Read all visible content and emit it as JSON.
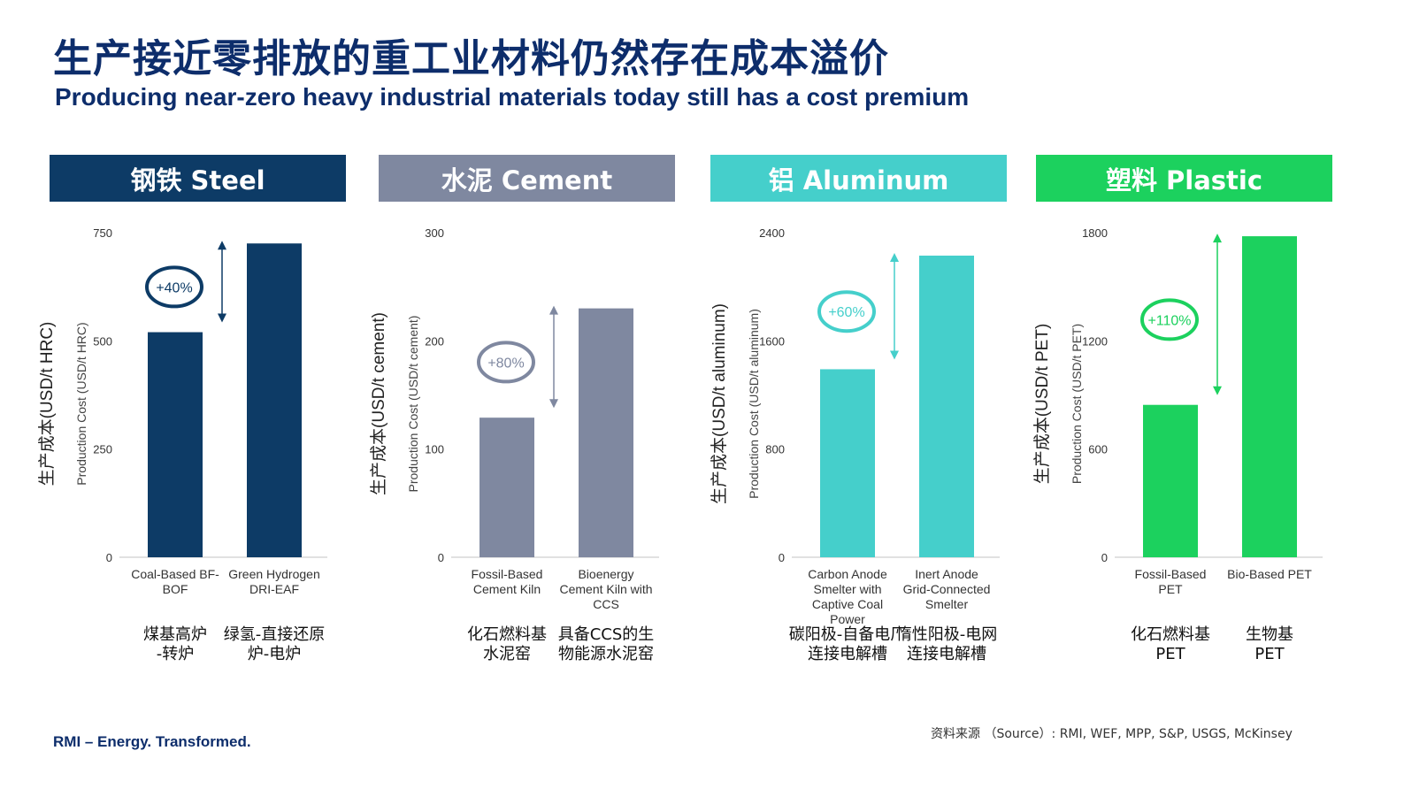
{
  "title_zh": "生产接近零排放的重工业材料仍然存在成本溢价",
  "title_en": "Producing near-zero heavy industrial materials today still has a cost premium",
  "footer": {
    "brand": "RMI – Energy. Transformed.",
    "source": "资料来源 （Source）: RMI, WEF, MPP, S&P, USGS, McKinsey"
  },
  "colors": {
    "steel": "#0d3b66",
    "cement": "#7f88a0",
    "aluminum": "#45cfcb",
    "plastic": "#1cd15e",
    "title": "#0d2d6b"
  },
  "chart_data": [
    {
      "type": "bar",
      "title": "钢铁 Steel",
      "color": "#0d3b66",
      "ylabel": "生产成本(USD/t HRC)",
      "ylabel2": "Production Cost (USD/t HRC)",
      "ylim": [
        0,
        750
      ],
      "yticks": [
        "0",
        "250",
        "500",
        "750"
      ],
      "categories": [
        "Coal-Based BF-BOF",
        "Green Hydrogen DRI-EAF"
      ],
      "categories_lines": [
        [
          "Coal-Based BF-",
          "BOF"
        ],
        [
          "Green Hydrogen",
          "DRI-EAF"
        ]
      ],
      "categories_zh": [
        [
          "煤基高炉",
          "-转炉"
        ],
        [
          "绿氢-直接还原",
          "炉-电炉"
        ]
      ],
      "values": [
        520,
        725
      ],
      "premium": "+40%"
    },
    {
      "type": "bar",
      "title": "水泥 Cement",
      "color": "#7f88a0",
      "ylabel": "生产成本(USD/t cement)",
      "ylabel2": "Production Cost (USD/t cement)",
      "ylim": [
        0,
        300
      ],
      "yticks": [
        "0",
        "100",
        "200",
        "300"
      ],
      "categories": [
        "Fossil-Based Cement Kiln",
        "Bioenergy Cement Kiln with CCS"
      ],
      "categories_lines": [
        [
          "Fossil-Based",
          "Cement Kiln"
        ],
        [
          "Bioenergy",
          "Cement Kiln with",
          "CCS"
        ]
      ],
      "categories_zh": [
        [
          "化石燃料基",
          "水泥窑"
        ],
        [
          "具备CCS的生",
          "物能源水泥窑"
        ]
      ],
      "values": [
        129,
        230
      ],
      "premium": "+80%"
    },
    {
      "type": "bar",
      "title": "铝 Aluminum",
      "color": "#45cfcb",
      "ylabel": "生产成本(USD/t aluminum)",
      "ylabel2": "Production Cost (USD/t aluminum)",
      "ylim": [
        0,
        2400
      ],
      "yticks": [
        "0",
        "800",
        "1600",
        "2400"
      ],
      "categories": [
        "Carbon Anode Smelter with Captive Coal Power",
        "Inert Anode Grid-Connected Smelter"
      ],
      "categories_lines": [
        [
          "Carbon Anode",
          "Smelter with",
          "Captive Coal",
          "Power"
        ],
        [
          "Inert Anode",
          "Grid-Connected",
          "Smelter"
        ]
      ],
      "categories_zh": [
        [
          "碳阳极-自备电厂",
          "连接电解槽"
        ],
        [
          "惰性阳极-电网",
          "连接电解槽"
        ]
      ],
      "values": [
        1390,
        2230
      ],
      "premium": "+60%"
    },
    {
      "type": "bar",
      "title": "塑料 Plastic",
      "color": "#1cd15e",
      "ylabel": "生产成本(USD/t PET)",
      "ylabel2": "Production Cost (USD/t PET)",
      "ylim": [
        0,
        1800
      ],
      "yticks": [
        "0",
        "600",
        "1200",
        "1800"
      ],
      "categories": [
        "Fossil-Based PET",
        "Bio-Based PET"
      ],
      "categories_lines": [
        [
          "Fossil-Based",
          "PET"
        ],
        [
          "Bio-Based PET"
        ]
      ],
      "categories_zh": [
        [
          "化石燃料基",
          "PET"
        ],
        [
          "生物基",
          "PET"
        ]
      ],
      "values": [
        845,
        1780
      ],
      "premium": "+110%"
    }
  ]
}
